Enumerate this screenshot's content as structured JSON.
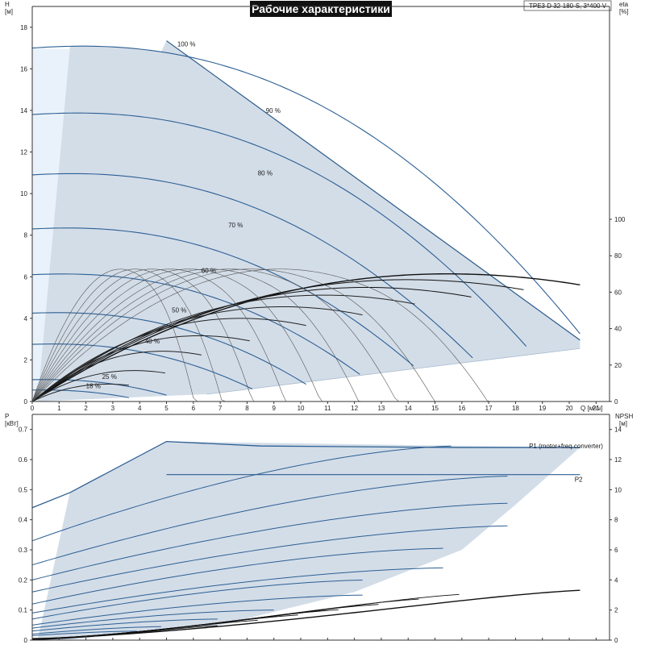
{
  "chart_data": [
    {
      "type": "line",
      "title": "Рабочие характеристики",
      "subtitle": "TPE3 D 32-180-S, 3*400 V",
      "xlabel": "Q [м³/ч]",
      "ylabel": "H\n[м]",
      "ylabel_right": "eta\n[%]",
      "xlim": [
        0,
        21.5
      ],
      "ylim": [
        0,
        19
      ],
      "y2lim": [
        0,
        110
      ],
      "x_ticks": [
        0,
        1,
        2,
        3,
        4,
        5,
        6,
        7,
        8,
        9,
        10,
        11,
        12,
        13,
        14,
        15,
        16,
        17,
        18,
        19,
        20,
        21
      ],
      "y_ticks": [
        0,
        2,
        4,
        6,
        8,
        10,
        12,
        14,
        16,
        18
      ],
      "y2_ticks": [
        0,
        20,
        40,
        60,
        80,
        100
      ],
      "grid": false,
      "speed_curve_labels": [
        {
          "label": "100 %",
          "x": 5.4,
          "y": 17.2
        },
        {
          "label": "90 %",
          "x": 8.7,
          "y": 14.0
        },
        {
          "label": "80 %",
          "x": 8.4,
          "y": 11.0
        },
        {
          "label": "70 %",
          "x": 7.3,
          "y": 8.5
        },
        {
          "label": "60 %",
          "x": 6.3,
          "y": 6.3
        },
        {
          "label": "50 %",
          "x": 5.2,
          "y": 4.4
        },
        {
          "label": "40 %",
          "x": 4.2,
          "y": 2.9
        },
        {
          "label": "25 %",
          "x": 2.6,
          "y": 1.2
        },
        {
          "label": "18 %",
          "x": 2.0,
          "y": 0.75
        }
      ],
      "speed_curves": [
        {
          "pct": 100,
          "h0": 17.0,
          "qmax": 20.4,
          "hend": 2.95
        },
        {
          "pct": 90,
          "h0": 13.8,
          "qmax": 18.4,
          "hend": 2.4
        },
        {
          "pct": 80,
          "h0": 10.9,
          "qmax": 16.4,
          "hend": 1.9
        },
        {
          "pct": 70,
          "h0": 8.3,
          "qmax": 14.3,
          "hend": 1.45
        },
        {
          "pct": 60,
          "h0": 6.1,
          "qmax": 12.3,
          "hend": 1.1
        },
        {
          "pct": 50,
          "h0": 4.25,
          "qmax": 10.2,
          "hend": 0.75
        },
        {
          "pct": 40,
          "h0": 2.75,
          "qmax": 8.2,
          "hend": 0.55
        },
        {
          "pct": 25,
          "h0": 1.05,
          "qmax": 5.1,
          "hend": 0.25
        },
        {
          "pct": 18,
          "h0": 0.55,
          "qmax": 3.7,
          "hend": 0.15
        }
      ],
      "series": [
        {
          "name": "eta 100 %",
          "x": [
            0,
            2,
            4,
            6,
            8,
            10,
            12,
            14,
            16,
            18,
            20.4
          ],
          "values": [
            0,
            22,
            36,
            46,
            53,
            56,
            56,
            54,
            50,
            43,
            30
          ]
        },
        {
          "name": "eta 90 %",
          "x": [
            0,
            2,
            4,
            6,
            8,
            10,
            12,
            14,
            16,
            18.4
          ],
          "values": [
            0,
            23,
            37,
            47,
            54,
            56,
            56,
            53,
            47,
            38
          ]
        },
        {
          "name": "eta 80 %",
          "x": [
            0,
            2,
            4,
            6,
            8,
            10,
            12,
            14,
            16.4
          ],
          "values": [
            0,
            24,
            39,
            49,
            55,
            56,
            54,
            48,
            38
          ]
        }
      ]
    },
    {
      "type": "line",
      "xlabel": "",
      "ylabel": "P\n[кВт]",
      "ylabel_right": "NPSH\n[м]",
      "xlim": [
        0,
        21.5
      ],
      "ylim": [
        0,
        0.75
      ],
      "y2lim": [
        0,
        15
      ],
      "y_ticks": [
        0,
        0.1,
        0.2,
        0.3,
        0.4,
        0.5,
        0.6,
        0.7
      ],
      "y2_ticks": [
        0,
        2,
        4,
        6,
        8,
        10,
        12,
        14
      ],
      "grid": false,
      "series": [
        {
          "name": "P1 (motor+freq.converter)",
          "x": [
            0,
            1.4,
            5.0,
            8.5,
            15.8,
            20.4
          ],
          "values": [
            0.44,
            0.49,
            0.66,
            0.645,
            0.64,
            0.64
          ]
        },
        {
          "name": "P2",
          "x": [
            5.0,
            20.4
          ],
          "values": [
            0.55,
            0.55
          ]
        },
        {
          "name": "NPSH",
          "x": [
            10,
            14,
            16,
            18,
            20.4
          ],
          "values": [
            2.8,
            3.5,
            3.8,
            3.7,
            3.4
          ]
        }
      ]
    }
  ]
}
